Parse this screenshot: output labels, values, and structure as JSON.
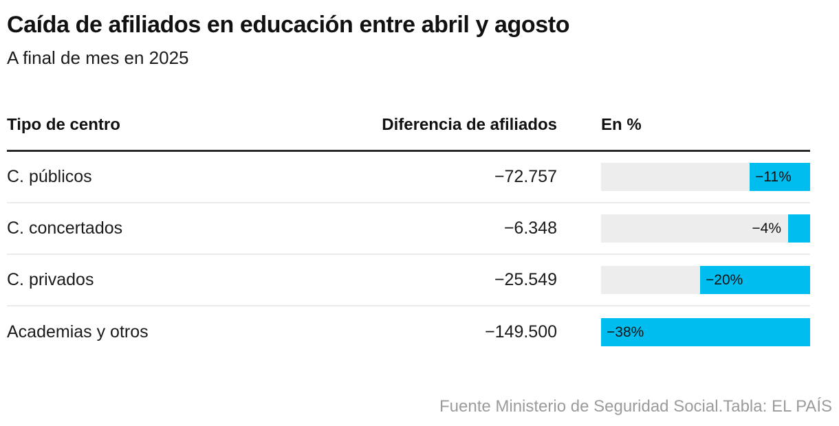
{
  "header": {
    "title": "Caída de afiliados en educación entre abril y agosto",
    "subtitle": "A final de mes en 2025"
  },
  "table": {
    "columns": {
      "label": "Tipo de centro",
      "value": "Diferencia de afiliados",
      "pct": "En %"
    },
    "rows": [
      {
        "label": "C. públicos",
        "value": "−72.757",
        "pct": -11,
        "pct_label": "−11%"
      },
      {
        "label": "C. concertados",
        "value": "−6.348",
        "pct": -4,
        "pct_label": "−4%"
      },
      {
        "label": "C. privados",
        "value": "−25.549",
        "pct": -20,
        "pct_label": "−20%"
      },
      {
        "label": "Academias y otros",
        "value": "−149.500",
        "pct": -38,
        "pct_label": "−38%"
      }
    ]
  },
  "chart_data": {
    "type": "bar",
    "orientation": "horizontal",
    "title": "Caída de afiliados en educación entre abril y agosto",
    "subtitle": "A final de mes en 2025",
    "categories": [
      "C. públicos",
      "C. concertados",
      "C. privados",
      "Academias y otros"
    ],
    "series": [
      {
        "name": "Diferencia de afiliados",
        "values": [
          -72757,
          -6348,
          -25549,
          -149500
        ]
      },
      {
        "name": "En %",
        "values": [
          -11,
          -4,
          -20,
          -38
        ]
      }
    ],
    "bar_series_shown": "En %",
    "xlim": [
      -38,
      0
    ],
    "grid": false,
    "legend": false,
    "bar_color": "#00bdf0",
    "track_color": "#ededed"
  },
  "footer": {
    "source": "Fuente Ministerio de Seguridad Social.",
    "credit": "Tabla: EL PAÍS"
  },
  "colors": {
    "accent": "#00bdf0",
    "track": "#ededed",
    "text": "#111111",
    "muted": "#9b9b9b",
    "rule_dark": "#2b2b2b",
    "rule_light": "#ebebeb"
  }
}
